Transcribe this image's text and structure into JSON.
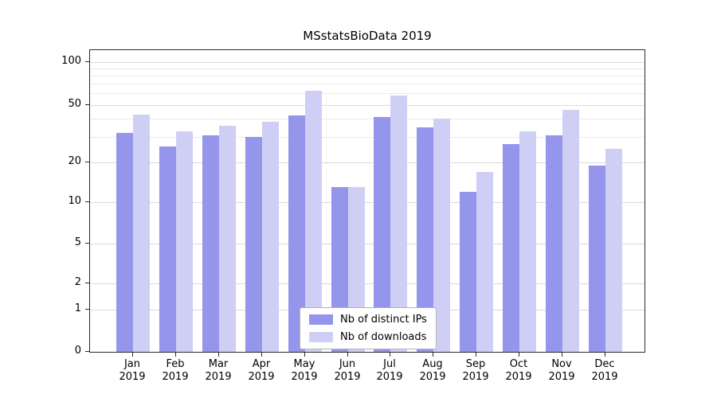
{
  "chart_data": {
    "type": "bar",
    "title": "MSstatsBioData 2019",
    "categories": [
      "Jan",
      "Feb",
      "Mar",
      "Apr",
      "May",
      "Jun",
      "Jul",
      "Aug",
      "Sep",
      "Oct",
      "Nov",
      "Dec"
    ],
    "category_year": "2019",
    "series": [
      {
        "name": "Nb of distinct IPs",
        "color": "#9595ec",
        "values": [
          32,
          26,
          31,
          30,
          42,
          13,
          41,
          35,
          12,
          27,
          31,
          19
        ]
      },
      {
        "name": "Nb of downloads",
        "color": "#cfcff5",
        "values": [
          43,
          33,
          36,
          38,
          63,
          13,
          58,
          40,
          17,
          33,
          46,
          25
        ]
      }
    ],
    "y_ticks": [
      0,
      1,
      2,
      5,
      10,
      20,
      50,
      100
    ],
    "minor_gridlines": [
      30,
      40,
      60,
      70,
      80,
      90
    ],
    "scale": "symlog",
    "ylim": [
      0,
      110
    ],
    "grid": true,
    "legend_position": "bottom-center"
  }
}
